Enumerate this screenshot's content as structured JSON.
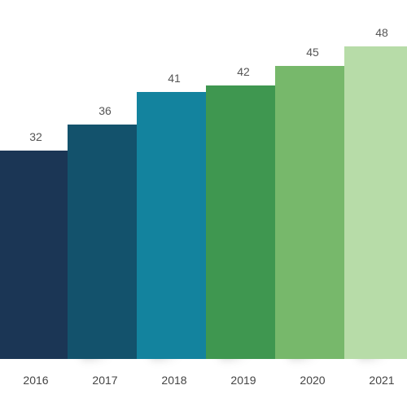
{
  "chart_data": {
    "type": "bar",
    "categories": [
      "2016",
      "2017",
      "2018",
      "2019",
      "2020",
      "2021"
    ],
    "values": [
      32,
      36,
      41,
      42,
      45,
      48
    ],
    "ylim": [
      0,
      48
    ],
    "grid": false,
    "legend": "none",
    "colors": [
      "#1b3655",
      "#13526c",
      "#13839e",
      "#3f9750",
      "#77b86b",
      "#b7dca8"
    ],
    "side_colors": [
      "#10233b",
      "#0b3a4f",
      "#0b6078",
      "#2a7538",
      "#579a4c",
      "#9ccb8b"
    ]
  }
}
